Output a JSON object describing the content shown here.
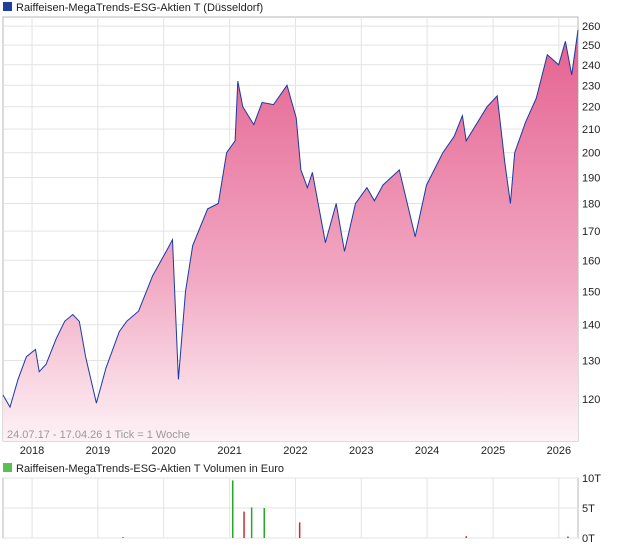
{
  "charts": {
    "price": {
      "legend_label": "Raiffeisen-MegaTrends-ESG-Aktien T (Düsseldorf)",
      "legend_color": "#1f3f9f",
      "info_text": "24.07.17 - 17.04.26   1 Tick = 1 Woche",
      "line_color": "#1a3aa5",
      "fill_top_color": "#e4608f",
      "fill_bottom_color": "#fdf2f6"
    },
    "volume": {
      "legend_label": "Raiffeisen-MegaTrends-ESG-Aktien T Volumen in Euro",
      "legend_color": "#5cbf55",
      "up_color": "#27a827",
      "down_color": "#d02a2a"
    }
  },
  "chart_data": [
    {
      "type": "area",
      "title": "Raiffeisen-MegaTrends-ESG-Aktien T (Düsseldorf)",
      "x_range": [
        "2017-07-24",
        "2026-04-17"
      ],
      "ylim": [
        110,
        265
      ],
      "grid": true,
      "x_tick_labels": [
        "2018",
        "2019",
        "2020",
        "2021",
        "2022",
        "2023",
        "2024",
        "2025",
        "2026"
      ],
      "y_tick_labels": [
        "120",
        "130",
        "140",
        "150",
        "160",
        "170",
        "180",
        "190",
        "200",
        "210",
        "220",
        "230",
        "240",
        "250",
        "260"
      ],
      "y_ticks": [
        120,
        130,
        140,
        150,
        160,
        170,
        180,
        190,
        200,
        210,
        220,
        230,
        240,
        250,
        260
      ],
      "y_scale": "log",
      "series": [
        {
          "values": [
            [
              "2017-07-24",
              121
            ],
            [
              "2017-09-01",
              118
            ],
            [
              "2017-10-15",
              125
            ],
            [
              "2017-12-01",
              131
            ],
            [
              "2018-01-20",
              133
            ],
            [
              "2018-02-10",
              127
            ],
            [
              "2018-03-20",
              129
            ],
            [
              "2018-05-15",
              136
            ],
            [
              "2018-07-01",
              141
            ],
            [
              "2018-08-15",
              143
            ],
            [
              "2018-09-20",
              141
            ],
            [
              "2018-10-25",
              131
            ],
            [
              "2018-12-24",
              119
            ],
            [
              "2019-02-15",
              128
            ],
            [
              "2019-04-30",
              138
            ],
            [
              "2019-06-10",
              141
            ],
            [
              "2019-08-15",
              144
            ],
            [
              "2019-11-01",
              155
            ],
            [
              "2020-01-15",
              163
            ],
            [
              "2020-02-19",
              167
            ],
            [
              "2020-03-23",
              125
            ],
            [
              "2020-05-01",
              150
            ],
            [
              "2020-06-10",
              165
            ],
            [
              "2020-09-01",
              178
            ],
            [
              "2020-10-30",
              180
            ],
            [
              "2020-12-15",
              200
            ],
            [
              "2021-01-31",
              205
            ],
            [
              "2021-02-15",
              232
            ],
            [
              "2021-03-15",
              220
            ],
            [
              "2021-05-15",
              212
            ],
            [
              "2021-06-30",
              222
            ],
            [
              "2021-09-01",
              221
            ],
            [
              "2021-11-15",
              230
            ],
            [
              "2022-01-05",
              215
            ],
            [
              "2022-01-31",
              193
            ],
            [
              "2022-03-08",
              186
            ],
            [
              "2022-04-05",
              192
            ],
            [
              "2022-06-16",
              166
            ],
            [
              "2022-08-15",
              180
            ],
            [
              "2022-09-30",
              163
            ],
            [
              "2022-11-30",
              180
            ],
            [
              "2023-02-01",
              186
            ],
            [
              "2023-03-15",
              181
            ],
            [
              "2023-05-01",
              187
            ],
            [
              "2023-07-31",
              193
            ],
            [
              "2023-10-27",
              168
            ],
            [
              "2023-12-29",
              187
            ],
            [
              "2024-03-28",
              200
            ],
            [
              "2024-05-31",
              207
            ],
            [
              "2024-07-15",
              216
            ],
            [
              "2024-08-05",
              205
            ],
            [
              "2024-11-29",
              220
            ],
            [
              "2025-01-24",
              225
            ],
            [
              "2025-03-07",
              196
            ],
            [
              "2025-04-07",
              180
            ],
            [
              "2025-05-01",
              200
            ],
            [
              "2025-06-30",
              213
            ],
            [
              "2025-08-29",
              224
            ],
            [
              "2025-10-29",
              245
            ],
            [
              "2025-12-31",
              240
            ],
            [
              "2026-02-06",
              252
            ],
            [
              "2026-03-13",
              235
            ],
            [
              "2026-04-17",
              258
            ]
          ]
        }
      ]
    },
    {
      "type": "bar",
      "title": "Raiffeisen-MegaTrends-ESG-Aktien T Volumen in Euro",
      "ylim": [
        0,
        10000
      ],
      "grid": true,
      "x_tick_labels": [],
      "y_tick_labels": [
        "10T",
        "5T",
        "0T"
      ],
      "y_ticks": [
        10000,
        5000,
        0
      ],
      "series": [
        {
          "name": "up",
          "values": [
            [
              "2019-05-20",
              150
            ],
            [
              "2021-01-18",
              9600
            ],
            [
              "2021-05-03",
              5100
            ],
            [
              "2021-07-12",
              5000
            ]
          ]
        },
        {
          "name": "down",
          "values": [
            [
              "2021-03-22",
              4400
            ],
            [
              "2022-01-24",
              2600
            ],
            [
              "2024-08-05",
              300
            ],
            [
              "2026-02-20",
              250
            ]
          ]
        }
      ]
    }
  ]
}
